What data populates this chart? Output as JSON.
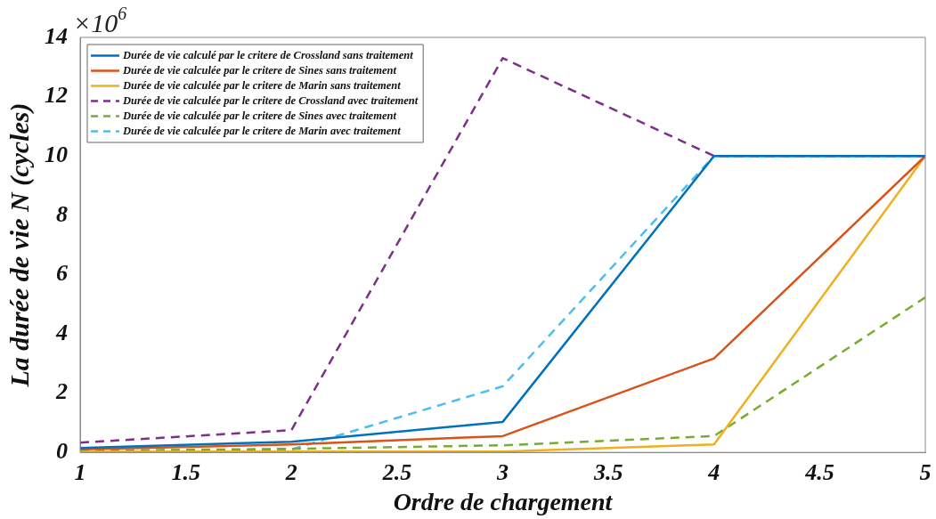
{
  "chart_data": {
    "type": "line",
    "xlabel": "Ordre de chargement",
    "ylabel": "La durée de vie N (cycles)",
    "annotations": [
      "×10$^{6}$"
    ],
    "x": [
      1,
      2,
      3,
      4,
      5
    ],
    "xlim": [
      1,
      5
    ],
    "xticks": [
      1,
      1.5,
      2,
      2.5,
      3,
      3.5,
      4,
      4.5,
      5
    ],
    "ylim": [
      0,
      14
    ],
    "yticks": [
      0,
      2,
      4,
      6,
      8,
      10,
      12,
      14
    ],
    "legend": "top left",
    "marker": "none",
    "series": [
      {
        "name": "Durée de vie calculé par le critere de Crossland sans traitement",
        "color": "#0072bd",
        "line_style": "solid",
        "values": [
          0.15,
          0.36,
          1.03,
          10,
          10
        ]
      },
      {
        "name": "Durée de vie calculée par le critere de Sines sans traitement",
        "color": "#d95319",
        "line_style": "solid",
        "values": [
          0.1,
          0.27,
          0.55,
          3.17,
          10
        ]
      },
      {
        "name": "Durée de vie calculée par le critere de Marin sans traitement",
        "color": "#edb120",
        "line_style": "solid",
        "values": [
          0.02,
          0.03,
          0.03,
          0.27,
          10
        ]
      },
      {
        "name": "Durée de vie calculée par le critere de Crossland avec traitement",
        "color": "#7e2f8e",
        "line_style": "dashed",
        "values": [
          0.33,
          0.75,
          13.3,
          10,
          10
        ]
      },
      {
        "name": "Durée de vie calculée par le critere de Sines avec traitement",
        "color": "#77ac30",
        "line_style": "dashed",
        "values": [
          0.05,
          0.12,
          0.24,
          0.55,
          5.23
        ]
      },
      {
        "name": "Durée de vie calculée par le critere de Marin avec traitement",
        "color": "#4dbeee",
        "line_style": "dashed",
        "values": [
          0.05,
          0.1,
          2.23,
          10,
          10
        ]
      }
    ]
  }
}
